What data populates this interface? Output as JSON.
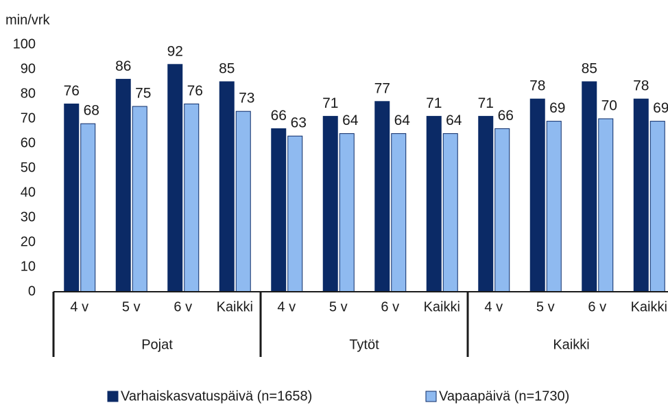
{
  "chart_data": {
    "type": "bar",
    "y_label": "min/vrk",
    "categories": [
      "4 v",
      "5 v",
      "6 v",
      "Kaikki",
      "4 v",
      "5 v",
      "6 v",
      "Kaikki",
      "4 v",
      "5 v",
      "6 v",
      "Kaikki"
    ],
    "groups": [
      "Pojat",
      "Tytöt",
      "Kaikki"
    ],
    "series": [
      {
        "name": "Varhaiskasvatuspäivä (n=1658)",
        "color": "#0b2a66",
        "values": [
          76,
          86,
          92,
          85,
          66,
          71,
          77,
          71,
          71,
          78,
          85,
          78
        ]
      },
      {
        "name": "Vapaapäivä (n=1730)",
        "color": "#8fbaf0",
        "values": [
          68,
          75,
          76,
          73,
          63,
          64,
          64,
          64,
          66,
          69,
          70,
          69
        ]
      }
    ],
    "ylim": [
      0,
      100
    ],
    "yticks": [
      0,
      10,
      20,
      30,
      40,
      50,
      60,
      70,
      80,
      90,
      100
    ],
    "grid": false,
    "legend": "bottom"
  }
}
